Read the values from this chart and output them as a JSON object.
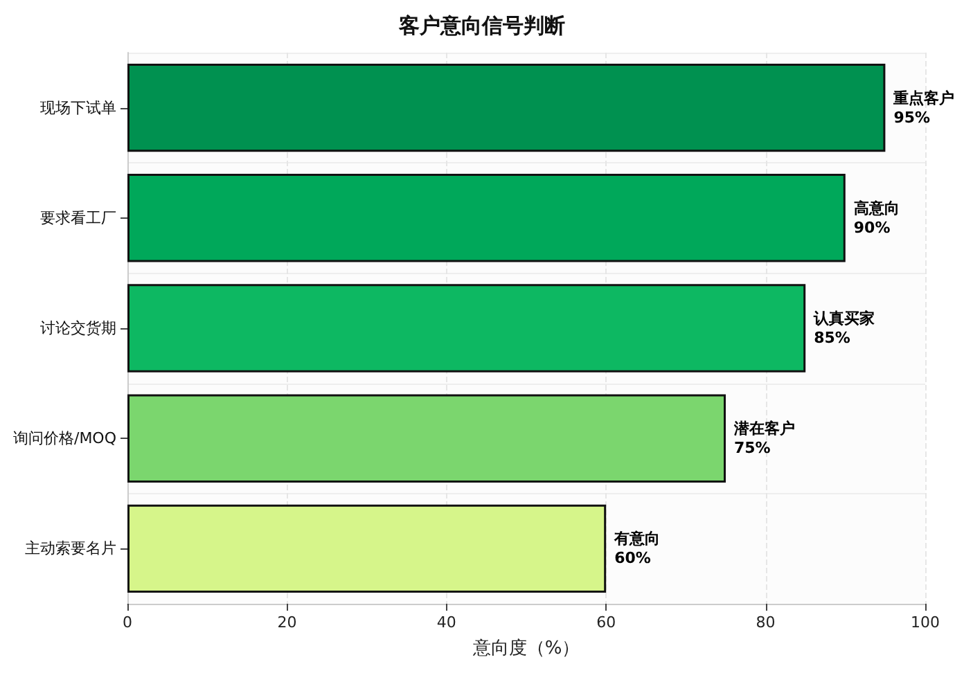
{
  "chart_data": {
    "type": "bar",
    "orientation": "horizontal",
    "title": "客户意向信号判断",
    "xlabel": "意向度（%）",
    "categories": [
      "现场下试单",
      "要求看工厂",
      "讨论交货期",
      "询问价格/MOQ",
      "主动索要名片"
    ],
    "values": [
      95,
      90,
      85,
      75,
      60
    ],
    "colors": [
      "#009150",
      "#00a85a",
      "#0db862",
      "#7bd66e",
      "#d6f58a"
    ],
    "value_labels": [
      "重点客户\n95%",
      "高意向\n90%",
      "认真买家\n85%",
      "潜在客户\n75%",
      "有意向\n60%"
    ],
    "xlim": [
      0,
      100
    ],
    "xticks": [
      0,
      20,
      40,
      60,
      80,
      100
    ],
    "grid": true
  }
}
